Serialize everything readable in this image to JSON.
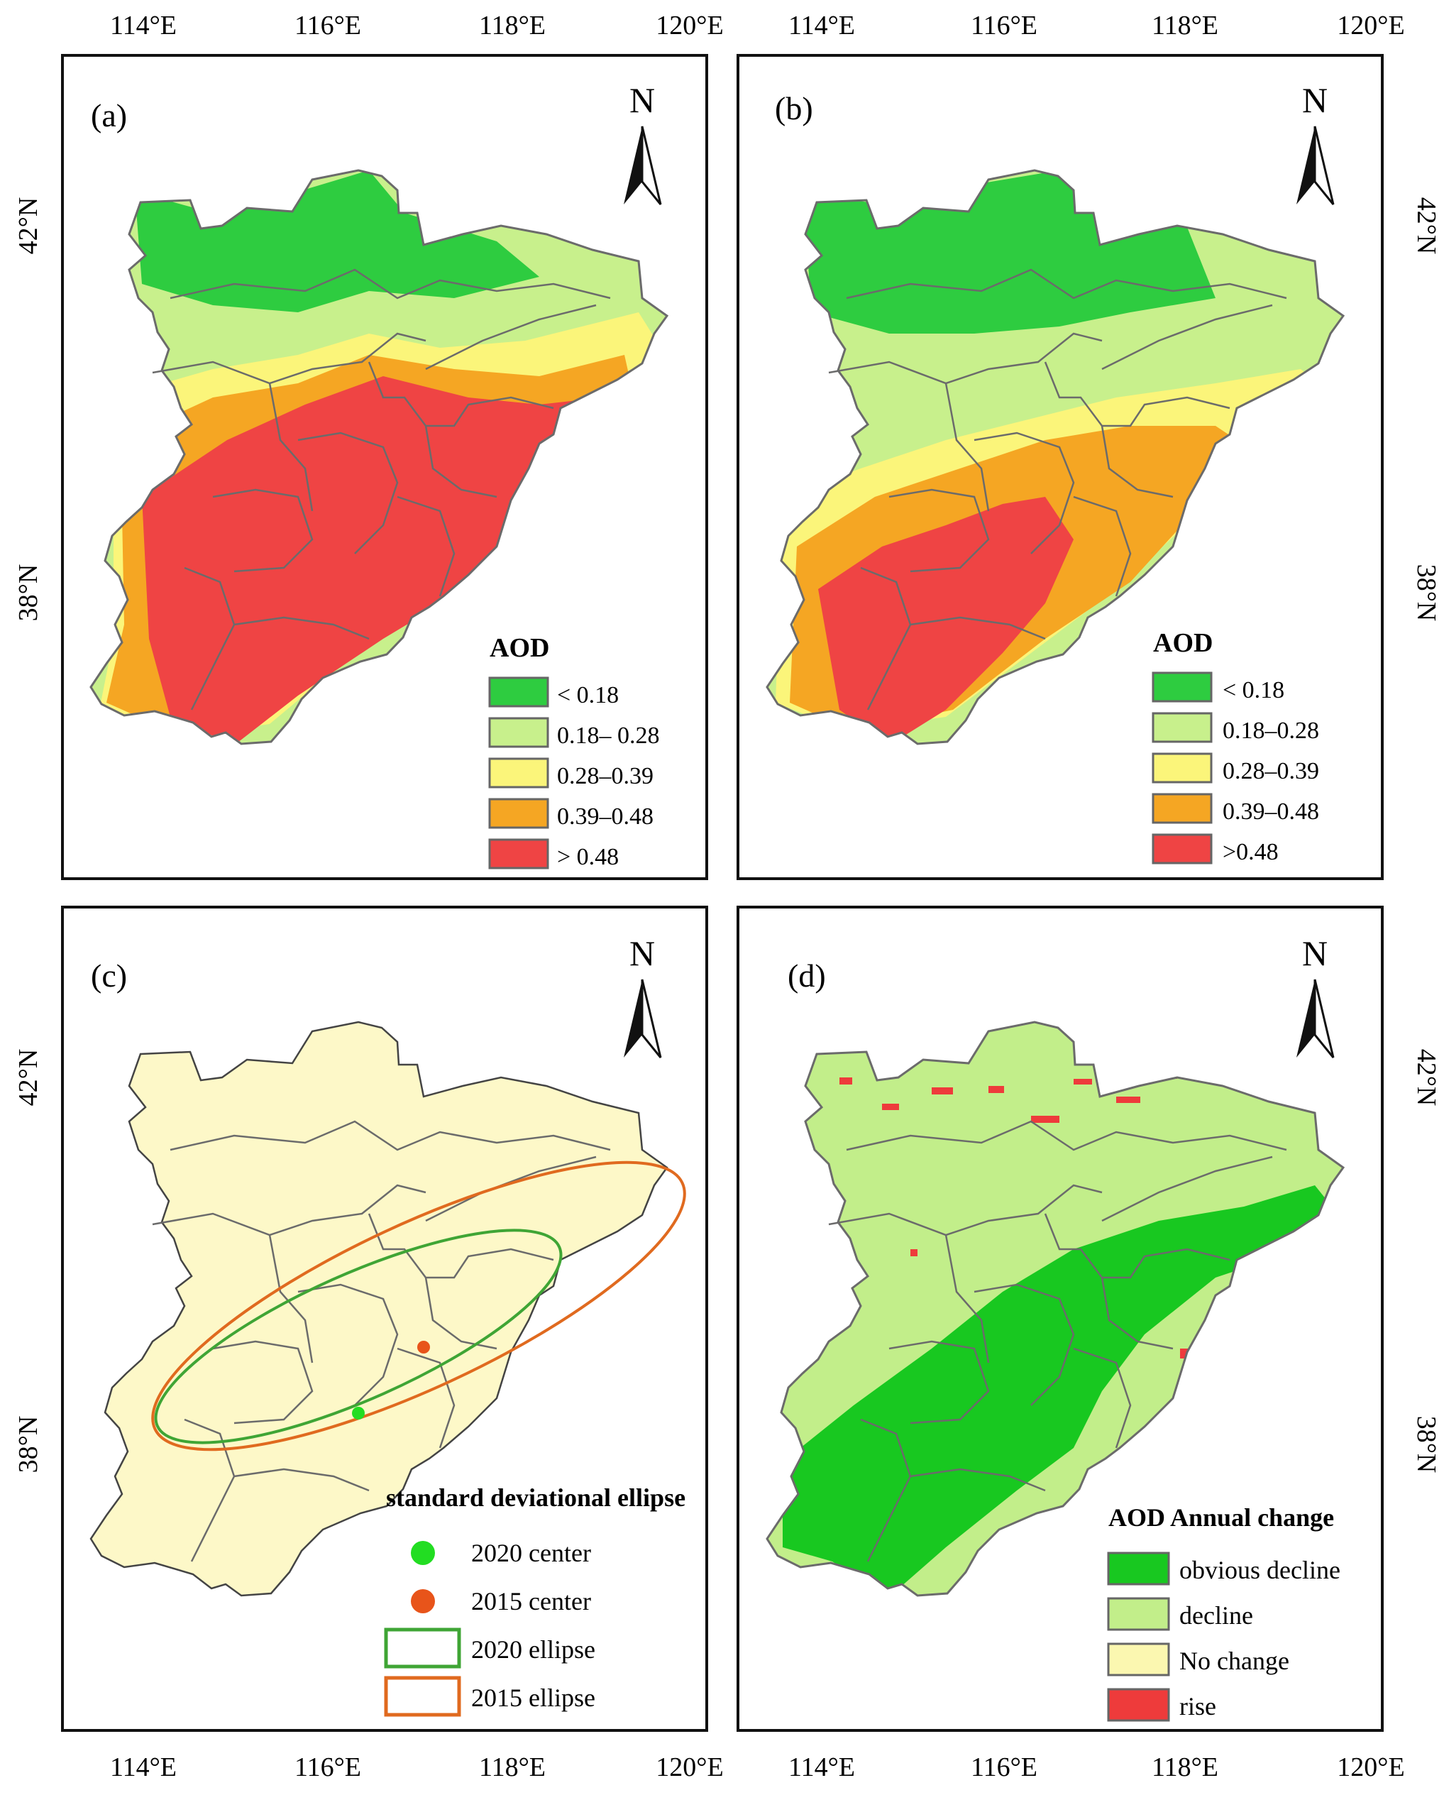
{
  "colors": {
    "aod_lt_018": "#2ecc40",
    "aod_018_028": "#c8f08c",
    "aod_028_039": "#fbf57a",
    "aod_039_048": "#f5a623",
    "aod_gt_048": "#ef4444",
    "region_fill": "#fdf8c8",
    "boundary": "#6b6b6b",
    "center_2020": "#22dd22",
    "center_2015": "#e8541a",
    "ellipse_2020": "#3fa535",
    "ellipse_2015": "#e06a1f",
    "obvious_decline": "#18c820",
    "decline": "#c2ee8a",
    "no_change": "#fbf7b0",
    "rise": "#ee3b3b"
  },
  "axes": {
    "top": {
      "left": [
        "114°E",
        "116°E",
        "118°E",
        "120°E"
      ],
      "right": [
        "114°E",
        "116°E",
        "118°E",
        "120°E"
      ]
    },
    "bottom": {
      "left": [
        "114°E",
        "116°E",
        "118°E",
        "120°E"
      ],
      "right": [
        "114°E",
        "116°E",
        "118°E",
        "120°E"
      ]
    },
    "lat_left": {
      "top": [
        "42°N",
        "38°N"
      ],
      "bottom": [
        "42°N",
        "38°N"
      ]
    },
    "lat_right": {
      "top": [
        "42°N",
        "38°N"
      ],
      "bottom": [
        "42°N",
        "38°N"
      ]
    }
  },
  "panels": {
    "a": {
      "label": "(a)",
      "north": "N",
      "legend": {
        "title": "AOD",
        "items": [
          {
            "label": "<  0.18",
            "color": "aod_lt_018"
          },
          {
            "label": "0.18– 0.28",
            "color": "aod_018_028"
          },
          {
            "label": "0.28–0.39",
            "color": "aod_028_039"
          },
          {
            "label": "0.39–0.48",
            "color": "aod_039_048"
          },
          {
            "label": "> 0.48",
            "color": "aod_gt_048"
          }
        ]
      }
    },
    "b": {
      "label": "(b)",
      "north": "N",
      "legend": {
        "title": "AOD",
        "items": [
          {
            "label": "< 0.18",
            "color": "aod_lt_018"
          },
          {
            "label": "0.18–0.28",
            "color": "aod_018_028"
          },
          {
            "label": "0.28–0.39",
            "color": "aod_028_039"
          },
          {
            "label": "0.39–0.48",
            "color": "aod_039_048"
          },
          {
            "label": ">0.48",
            "color": "aod_gt_048"
          }
        ]
      }
    },
    "c": {
      "label": "(c)",
      "north": "N",
      "legend": {
        "title": "standard deviational ellipse",
        "items": [
          {
            "label": "2020 center",
            "kind": "dot",
            "color": "center_2020"
          },
          {
            "label": "2015 center",
            "kind": "dot",
            "color": "center_2015"
          },
          {
            "label": "2020 ellipse",
            "kind": "box",
            "color": "ellipse_2020"
          },
          {
            "label": "2015 ellipse",
            "kind": "box",
            "color": "ellipse_2015"
          }
        ]
      }
    },
    "d": {
      "label": "(d)",
      "north": "N",
      "legend": {
        "title": "AOD Annual change",
        "items": [
          {
            "label": "obvious decline",
            "color": "obvious_decline"
          },
          {
            "label": "decline",
            "color": "decline"
          },
          {
            "label": "No change",
            "color": "no_change"
          },
          {
            "label": "rise",
            "color": "rise"
          }
        ]
      }
    }
  }
}
